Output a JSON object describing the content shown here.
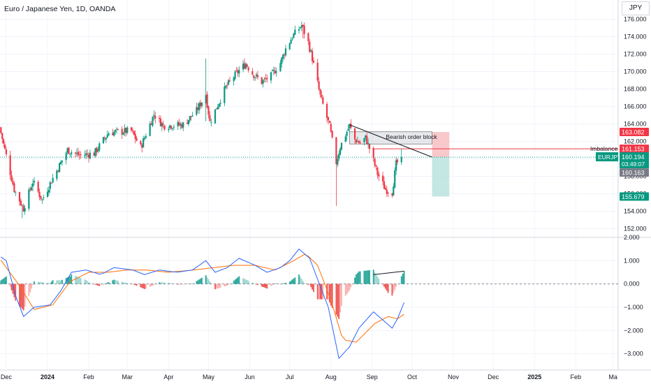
{
  "title": "Euro / Japanese Yen, 1D, OANDA",
  "currency": "JPY",
  "chart_data": [
    {
      "type": "candlestick",
      "symbol": "EURJPY",
      "ylim": [
        151,
        177
      ],
      "y_ticks": [
        "152.000",
        "154.000",
        "156.000",
        "158.000",
        "160.000",
        "162.000",
        "164.000",
        "166.000",
        "168.000",
        "170.000",
        "172.000",
        "174.000",
        "176.000"
      ],
      "x_ticks": [
        "Dec",
        "2024",
        "Feb",
        "Mar",
        "Apr",
        "May",
        "Jun",
        "Jul",
        "Aug",
        "Sep",
        "Oct",
        "Nov",
        "Dec",
        "2025",
        "Feb",
        "Ma"
      ],
      "anchors": [
        [
          "2023-11-26",
          163.6
        ],
        [
          "2023-12-07",
          156.5
        ],
        [
          "2023-12-14",
          154.3
        ],
        [
          "2023-12-21",
          157.4
        ],
        [
          "2023-12-28",
          155.3
        ],
        [
          "2024-01-03",
          157.2
        ],
        [
          "2024-01-16",
          161.0
        ],
        [
          "2024-01-25",
          160.4
        ],
        [
          "2024-02-05",
          160.6
        ],
        [
          "2024-02-16",
          163.0
        ],
        [
          "2024-02-23",
          163.1
        ],
        [
          "2024-03-04",
          163.2
        ],
        [
          "2024-03-11",
          161.3
        ],
        [
          "2024-03-21",
          165.1
        ],
        [
          "2024-03-28",
          163.8
        ],
        [
          "2024-04-12",
          163.9
        ],
        [
          "2024-04-22",
          165.5
        ],
        [
          "2024-04-29",
          167.4
        ],
        [
          "2024-05-02",
          164.2
        ],
        [
          "2024-05-14",
          168.2
        ],
        [
          "2024-05-22",
          169.8
        ],
        [
          "2024-05-29",
          170.9
        ],
        [
          "2024-06-03",
          169.8
        ],
        [
          "2024-06-10",
          168.8
        ],
        [
          "2024-06-17",
          169.5
        ],
        [
          "2024-06-24",
          171.0
        ],
        [
          "2024-06-28",
          172.6
        ],
        [
          "2024-07-03",
          174.0
        ],
        [
          "2024-07-10",
          175.3
        ],
        [
          "2024-07-15",
          173.3
        ],
        [
          "2024-07-18",
          171.5
        ],
        [
          "2024-07-24",
          167.2
        ],
        [
          "2024-07-31",
          163.7
        ],
        [
          "2024-08-05",
          159.6
        ],
        [
          "2024-08-08",
          161.4
        ],
        [
          "2024-08-15",
          163.8
        ],
        [
          "2024-08-19",
          162.2
        ],
        [
          "2024-08-23",
          161.8
        ],
        [
          "2024-08-27",
          162.4
        ],
        [
          "2024-08-30",
          161.2
        ],
        [
          "2024-09-05",
          158.3
        ],
        [
          "2024-09-11",
          156.5
        ],
        [
          "2024-09-16",
          156.2
        ],
        [
          "2024-09-19",
          159.4
        ],
        [
          "2024-09-23",
          160.2
        ]
      ],
      "highs_lows": {
        "2023-12-13": [
          154.8,
          153.2
        ],
        "2024-04-29": [
          171.5,
          164.3
        ],
        "2024-07-11": [
          175.4,
          173.8
        ],
        "2024-08-05": [
          160.2,
          154.6
        ]
      },
      "current_price": "160.194",
      "countdown": "03:49:07",
      "price_labels": [
        {
          "value": "163.082",
          "color": "#f23645"
        },
        {
          "value": "161.153",
          "color": "#f23645"
        },
        {
          "value": "160.194",
          "color": "#089981"
        },
        {
          "value": "160.163",
          "color": "#787b86"
        },
        {
          "value": "155.679",
          "color": "#089981"
        }
      ],
      "annotations": {
        "order_block_label": "Bearish order block",
        "imbalance_label": "Imbalance",
        "order_block": {
          "from": "2024-08-15",
          "to": "2024-10-16",
          "top": 163.1,
          "bottom": 161.7
        },
        "imbalance_price": 161.153,
        "trendline": {
          "from": [
            "2024-08-15",
            163.9
          ],
          "to": [
            "2024-10-16",
            160.2
          ]
        },
        "position": {
          "from": "2024-10-16",
          "to": "2024-10-29",
          "stop": 163.082,
          "entry": 160.2,
          "target": 155.679
        }
      },
      "colors": {
        "up": "#089981",
        "down": "#f23645",
        "stop_zone": "#f7b5b9",
        "target_zone": "#b2dfdb"
      }
    },
    {
      "type": "macd",
      "ylim": [
        -3.7,
        2.0
      ],
      "y_ticks": [
        "2.000",
        "1.000",
        "0.000",
        "−1.000",
        "−2.000",
        "−3.000"
      ],
      "macd_anchors": [
        [
          "2023-11-26",
          1.2
        ],
        [
          "2023-12-01",
          1.0
        ],
        [
          "2023-12-08",
          -0.5
        ],
        [
          "2023-12-14",
          -1.4
        ],
        [
          "2023-12-22",
          -1.0
        ],
        [
          "2024-01-03",
          -0.9
        ],
        [
          "2024-01-11",
          -0.3
        ],
        [
          "2024-01-19",
          0.5
        ],
        [
          "2024-01-30",
          0.6
        ],
        [
          "2024-02-10",
          0.4
        ],
        [
          "2024-02-20",
          0.7
        ],
        [
          "2024-03-05",
          0.6
        ],
        [
          "2024-03-14",
          0.4
        ],
        [
          "2024-03-25",
          0.6
        ],
        [
          "2024-04-07",
          0.5
        ],
        [
          "2024-04-19",
          0.6
        ],
        [
          "2024-04-29",
          1.0
        ],
        [
          "2024-05-06",
          0.5
        ],
        [
          "2024-05-15",
          0.7
        ],
        [
          "2024-05-24",
          1.1
        ],
        [
          "2024-06-05",
          0.8
        ],
        [
          "2024-06-14",
          0.5
        ],
        [
          "2024-06-24",
          0.7
        ],
        [
          "2024-07-01",
          1.0
        ],
        [
          "2024-07-08",
          1.5
        ],
        [
          "2024-07-16",
          1.1
        ],
        [
          "2024-07-22",
          0.2
        ],
        [
          "2024-07-30",
          -1.0
        ],
        [
          "2024-08-07",
          -3.2
        ],
        [
          "2024-08-15",
          -2.7
        ],
        [
          "2024-08-22",
          -1.9
        ],
        [
          "2024-09-02",
          -1.2
        ],
        [
          "2024-09-10",
          -1.6
        ],
        [
          "2024-09-16",
          -1.9
        ],
        [
          "2024-09-20",
          -1.5
        ],
        [
          "2024-09-25",
          -0.8
        ]
      ],
      "signal_anchors": [
        [
          "2023-11-26",
          1.1
        ],
        [
          "2023-12-10",
          0.0
        ],
        [
          "2023-12-22",
          -1.1
        ],
        [
          "2024-01-05",
          -0.9
        ],
        [
          "2024-01-18",
          0.1
        ],
        [
          "2024-02-01",
          0.5
        ],
        [
          "2024-02-15",
          0.5
        ],
        [
          "2024-03-01",
          0.6
        ],
        [
          "2024-03-15",
          0.6
        ],
        [
          "2024-04-01",
          0.5
        ],
        [
          "2024-04-20",
          0.6
        ],
        [
          "2024-05-05",
          0.7
        ],
        [
          "2024-05-20",
          0.8
        ],
        [
          "2024-06-05",
          0.8
        ],
        [
          "2024-06-20",
          0.6
        ],
        [
          "2024-07-04",
          1.0
        ],
        [
          "2024-07-13",
          1.3
        ],
        [
          "2024-07-22",
          0.8
        ],
        [
          "2024-08-01",
          -0.7
        ],
        [
          "2024-08-10",
          -2.4
        ],
        [
          "2024-08-20",
          -2.5
        ],
        [
          "2024-09-03",
          -1.7
        ],
        [
          "2024-09-13",
          -1.4
        ],
        [
          "2024-09-20",
          -1.5
        ],
        [
          "2024-09-25",
          -1.3
        ]
      ],
      "divergence_line": {
        "from": [
          "2024-09-02",
          0.4
        ],
        "to": [
          "2024-09-25",
          0.55
        ]
      },
      "colors": {
        "macd": "#2962ff",
        "signal": "#ff6d00",
        "hist_up": "#26a69a",
        "hist_down": "#ef5350"
      }
    }
  ]
}
